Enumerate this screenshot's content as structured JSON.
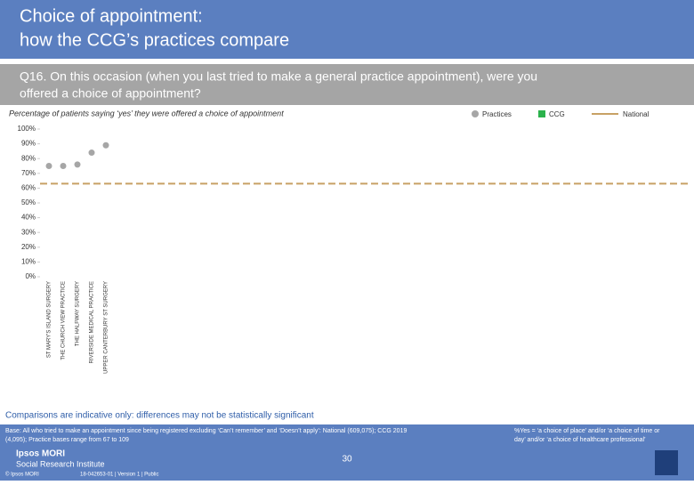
{
  "header": {
    "title_lines": [
      "Choice of appointment:",
      "how the CCG’s practices compare"
    ],
    "question_lines": [
      "Q16. On this occasion (when you last tried to make a general practice appointment), were you",
      "offered a choice of appointment?"
    ]
  },
  "chart_data": {
    "type": "scatter",
    "subtitle": "Percentage of patients saying ‘yes’ they were offered a choice of appointment",
    "categories": [
      "ST MARY'S ISLAND SURGERY",
      "THE CHURCH VIEW PRACTICE",
      "THE HALFWAY SURGERY",
      "RIVERSIDE MEDICAL PRACTICE",
      "UPPER CANTERBURY ST SURGERY"
    ],
    "series": [
      {
        "name": "Practices",
        "color": "#a6a6a6",
        "values": [
          75,
          75,
          76,
          84,
          89
        ]
      },
      {
        "name": "CCG",
        "color": "#2bb24c",
        "values": [
          null,
          null,
          null,
          null,
          null
        ]
      }
    ],
    "national": {
      "name": "National",
      "color": "#c8a165",
      "value": 63
    },
    "ylim": [
      0,
      100
    ],
    "yticks": [
      {
        "value": 0,
        "label": "0%"
      },
      {
        "value": 10,
        "label": "10%"
      },
      {
        "value": 20,
        "label": "20%"
      },
      {
        "value": 30,
        "label": "30%"
      },
      {
        "value": 40,
        "label": "40%"
      },
      {
        "value": 50,
        "label": "50%"
      },
      {
        "value": 60,
        "label": "60%"
      },
      {
        "value": 70,
        "label": "70%"
      },
      {
        "value": 80,
        "label": "80%"
      },
      {
        "value": 90,
        "label": "90%"
      },
      {
        "value": 100,
        "label": "100%"
      }
    ],
    "note": "Comparisons are indicative only: differences may not be statistically significant"
  },
  "footer": {
    "base_lines": [
      "Base: All who tried to make an appointment since being registered excluding ‘Can’t remember’ and ‘Doesn’t apply’: National (609,075); CCG 2019",
      "(4,095); Practice bases range from 67 to 109"
    ],
    "definition_lines": [
      "%Yes = ‘a choice of place’ and/or ‘a choice of time or",
      "day’ and/or ‘a choice of healthcare professional’"
    ],
    "page_number": "30",
    "logo_lines": [
      "Ipsos MORI",
      "Social Research Institute"
    ],
    "copyright": "© Ipsos MORI",
    "reference": "18-042653-01 | Version 1 | Public"
  }
}
